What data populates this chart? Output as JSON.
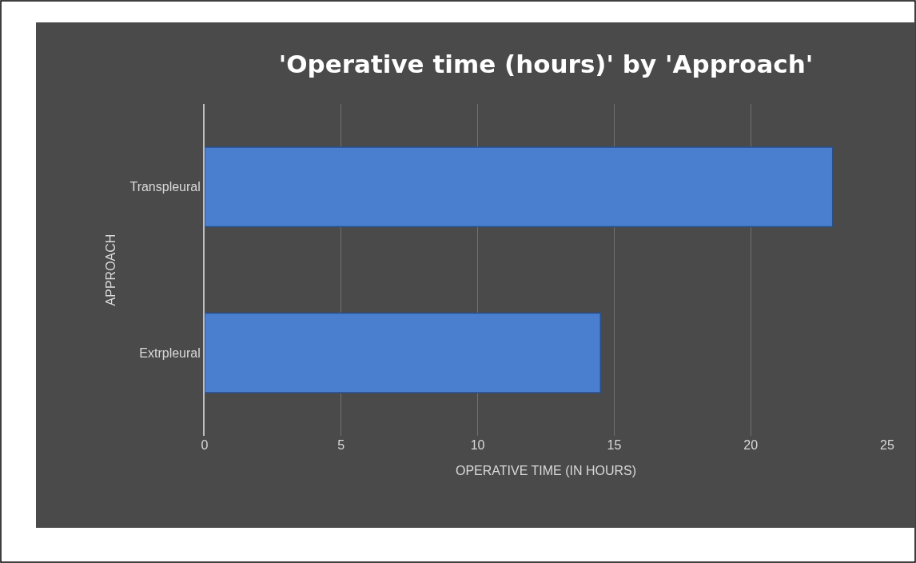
{
  "chart_data": {
    "type": "bar",
    "orientation": "horizontal",
    "title": "'Operative time (hours)' by 'Approach'",
    "xlabel": "OPERATIVE TIME (IN HOURS)",
    "ylabel": "APPROACH",
    "categories": [
      "Transpleural",
      "Extrpleural"
    ],
    "values": [
      23,
      14.5
    ],
    "color": "#4a7fd0",
    "xlim": [
      0,
      25
    ],
    "xticks": [
      0,
      5,
      10,
      15,
      20,
      25
    ],
    "grid": "x",
    "legend": false
  }
}
